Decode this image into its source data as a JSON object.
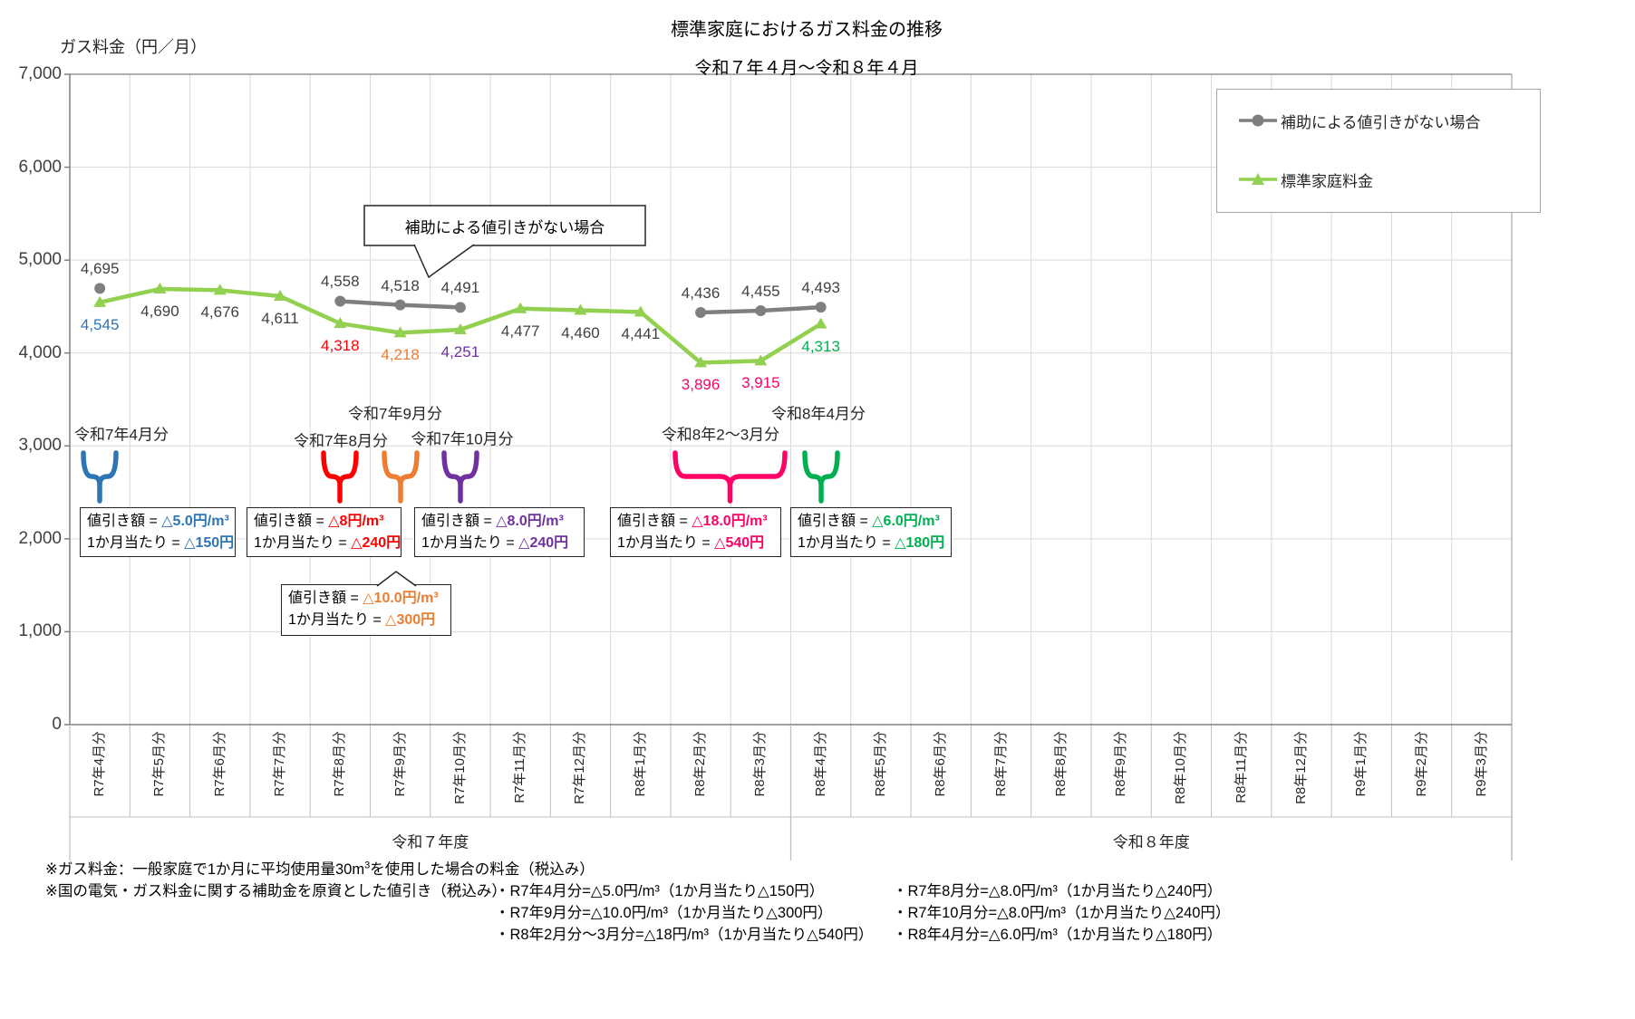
{
  "chart_data": {
    "type": "line",
    "title": "標準家庭におけるガス料金の推移",
    "subtitle": "令和７年４月～令和８年４月",
    "ylabel": "ガス料金（円／月）",
    "ylim": [
      0,
      7000
    ],
    "ytick_step": 1000,
    "grid": true,
    "legend_position": "top-right",
    "categories": [
      "R7年4月分",
      "R7年5月分",
      "R7年6月分",
      "R7年7月分",
      "R7年8月分",
      "R7年9月分",
      "R7年10月分",
      "R7年11月分",
      "R7年12月分",
      "R8年1月分",
      "R8年2月分",
      "R8年3月分",
      "R8年4月分",
      "R8年5月分",
      "R8年6月分",
      "R8年7月分",
      "R8年8月分",
      "R8年9月分",
      "R8年10月分",
      "R8年11月分",
      "R8年12月分",
      "R9年1月分",
      "R9年2月分",
      "R9年3月分"
    ],
    "series": [
      {
        "name": "補助による値引きがない場合",
        "color": "#7F7F7F",
        "marker": "circle",
        "label_side": "above",
        "segments": [
          [
            0
          ],
          [
            4,
            5,
            6
          ],
          [
            10,
            11,
            12
          ]
        ],
        "points": [
          {
            "index": 0,
            "value": 4695,
            "label": "4,695",
            "label_color": "#404040"
          },
          {
            "index": 4,
            "value": 4558,
            "label": "4,558",
            "label_color": "#404040"
          },
          {
            "index": 5,
            "value": 4518,
            "label": "4,518",
            "label_color": "#404040"
          },
          {
            "index": 6,
            "value": 4491,
            "label": "4,491",
            "label_color": "#404040"
          },
          {
            "index": 10,
            "value": 4436,
            "label": "4,436",
            "label_color": "#404040"
          },
          {
            "index": 11,
            "value": 4455,
            "label": "4,455",
            "label_color": "#404040"
          },
          {
            "index": 12,
            "value": 4493,
            "label": "4,493",
            "label_color": "#404040"
          }
        ]
      },
      {
        "name": "標準家庭料金",
        "color": "#92D050",
        "marker": "triangle",
        "label_side": "below",
        "segments": [
          [
            0,
            1,
            2,
            3,
            4,
            5,
            6,
            7,
            8,
            9,
            10,
            11,
            12
          ]
        ],
        "points": [
          {
            "index": 0,
            "value": 4545,
            "label": "4,545",
            "label_color": "#2E75B6"
          },
          {
            "index": 1,
            "value": 4690,
            "label": "4,690",
            "label_color": "#404040"
          },
          {
            "index": 2,
            "value": 4676,
            "label": "4,676",
            "label_color": "#404040"
          },
          {
            "index": 3,
            "value": 4611,
            "label": "4,611",
            "label_color": "#404040"
          },
          {
            "index": 4,
            "value": 4318,
            "label": "4,318",
            "label_color": "#FF0000"
          },
          {
            "index": 5,
            "value": 4218,
            "label": "4,218",
            "label_color": "#ED7D31"
          },
          {
            "index": 6,
            "value": 4251,
            "label": "4,251",
            "label_color": "#7030A0"
          },
          {
            "index": 7,
            "value": 4477,
            "label": "4,477",
            "label_color": "#404040"
          },
          {
            "index": 8,
            "value": 4460,
            "label": "4,460",
            "label_color": "#404040"
          },
          {
            "index": 9,
            "value": 4441,
            "label": "4,441",
            "label_color": "#404040"
          },
          {
            "index": 10,
            "value": 3896,
            "label": "3,896",
            "label_color": "#FF0066"
          },
          {
            "index": 11,
            "value": 3915,
            "label": "3,915",
            "label_color": "#FF0066"
          },
          {
            "index": 12,
            "value": 4313,
            "label": "4,313",
            "label_color": "#00B050"
          }
        ]
      }
    ],
    "fiscal_year_groups": [
      {
        "label": "令和７年度",
        "from_index": 0,
        "to_index": 11
      },
      {
        "label": "令和８年度",
        "from_index": 12,
        "to_index": 23
      }
    ]
  },
  "legend": {
    "entries": [
      {
        "label": "補助による値引きがない場合",
        "color": "#7F7F7F",
        "marker": "circle"
      },
      {
        "label": "標準家庭料金",
        "color": "#92D050",
        "marker": "triangle"
      }
    ]
  },
  "gray_callout": {
    "text": "補助による値引きがない場合"
  },
  "discounts": [
    {
      "period_label": "令和7年4月分",
      "color": "#2E75B6",
      "months": [
        0
      ],
      "amount_prefix": "値引き額 = ",
      "amount_value": "△5.0円/㎥",
      "monthly_prefix": "1か月当たり = ",
      "monthly_value": "△150円"
    },
    {
      "period_label": "令和7年8月分",
      "color": "#FF0000",
      "months": [
        4
      ],
      "amount_prefix": "値引き額 = ",
      "amount_value": "△8円/㎥",
      "monthly_prefix": "1か月当たり = ",
      "monthly_value": "△240円"
    },
    {
      "period_label": "令和7年9月分",
      "color": "#ED7D31",
      "months": [
        5
      ],
      "amount_prefix": "値引き額 = ",
      "amount_value": "△10.0円/㎥",
      "monthly_prefix": "1か月当たり = ",
      "monthly_value": "△300円"
    },
    {
      "period_label": "令和7年10月分",
      "color": "#7030A0",
      "months": [
        6
      ],
      "amount_prefix": "値引き額 = ",
      "amount_value": "△8.0円/㎥",
      "monthly_prefix": "1か月当たり = ",
      "monthly_value": "△240円"
    },
    {
      "period_label": "令和8年2～3月分",
      "color": "#FF0066",
      "months": [
        10,
        11
      ],
      "amount_prefix": "値引き額 = ",
      "amount_value": "△18.0円/㎥",
      "monthly_prefix": "1か月当たり = ",
      "monthly_value": "△540円"
    },
    {
      "period_label": "令和8年4月分",
      "color": "#00B050",
      "months": [
        12
      ],
      "amount_prefix": "値引き額 = ",
      "amount_value": "△6.0円/㎥",
      "monthly_prefix": "1か月当たり = ",
      "monthly_value": "△180円"
    }
  ],
  "footnotes": {
    "note1_prefix": "※ガス料金：一般家庭で1か月に平均使用量30m",
    "note1_sup": "3",
    "note1_suffix": "を使用した場合の料金（税込み）",
    "note2_label": "※国の電気・ガス料金に関する補助金を原資とした値引き（税込み）",
    "discount_notes": [
      [
        "・R7年4月分=△5.0円/㎥（1か月当たり△150円）",
        "・R7年8月分=△8.0円/㎥（1か月当たり△240円）"
      ],
      [
        "・R7年9月分=△10.0円/㎥（1か月当たり△300円）",
        "・R7年10月分=△8.0円/㎥（1か月当たり△240円）"
      ],
      [
        "・R8年2月分～3月分=△18円/㎥（1か月当たり△540円）",
        "・R8年4月分=△6.0円/㎥（1か月当たり△180円）"
      ]
    ]
  }
}
